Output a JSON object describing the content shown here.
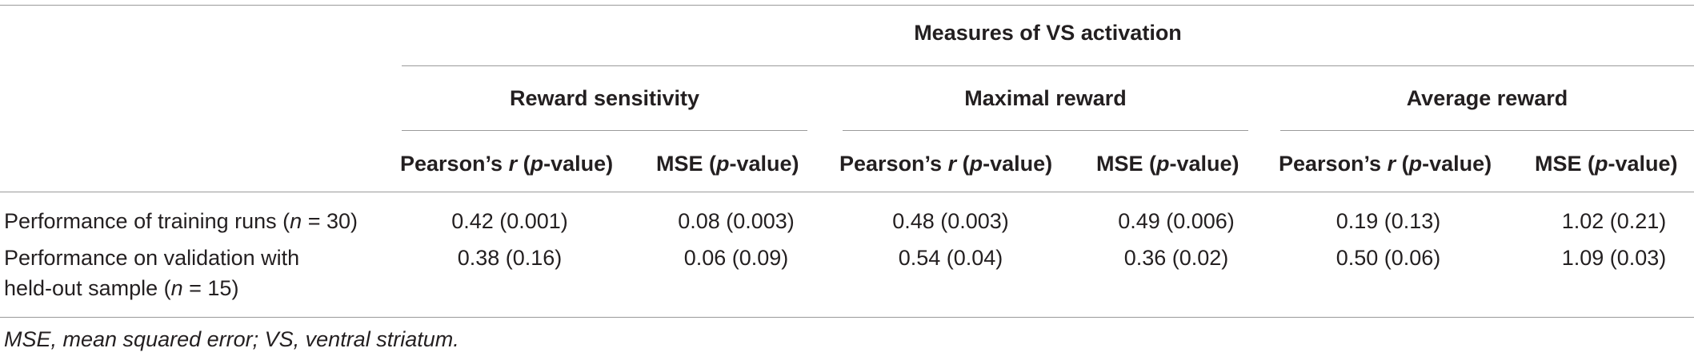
{
  "table": {
    "spanner": "Measures of VS activation",
    "groups": [
      "Reward sensitivity",
      "Maximal reward",
      "Average reward"
    ],
    "col_headers": [
      {
        "main": "Pearson’s ",
        "italic": "r",
        "open": " (",
        "p": "p",
        "rest": "-value)"
      },
      {
        "main": "MSE (",
        "p": "p",
        "rest": "-value)"
      },
      {
        "main": "Pearson’s ",
        "italic": "r",
        "open": " (",
        "p": "p",
        "rest": "-value)"
      },
      {
        "main": "MSE (",
        "p": "p",
        "rest": "-value)"
      },
      {
        "main": "Pearson’s ",
        "italic": "r",
        "open": " (",
        "p": "p",
        "rest": "-value)"
      },
      {
        "main": "MSE (",
        "p": "p",
        "rest": "-value)"
      }
    ],
    "rows": [
      {
        "label_a": "Performance of training runs (",
        "label_n": "n",
        "label_b": " = 30)",
        "values": [
          "0.42 (0.001)",
          "0.08 (0.003)",
          "0.48 (0.003)",
          "0.49 (0.006)",
          "0.19 (0.13)",
          "1.02 (0.21)"
        ]
      },
      {
        "label_line1": "Performance on validation with",
        "label_a": "held-out sample (",
        "label_n": "n",
        "label_b": " = 15)",
        "values": [
          "0.38 (0.16)",
          "0.06 (0.09)",
          "0.54 (0.04)",
          "0.36 (0.02)",
          "0.50 (0.06)",
          "1.09 (0.03)"
        ]
      }
    ],
    "footnote": "MSE, mean squared error; VS, ventral striatum."
  }
}
